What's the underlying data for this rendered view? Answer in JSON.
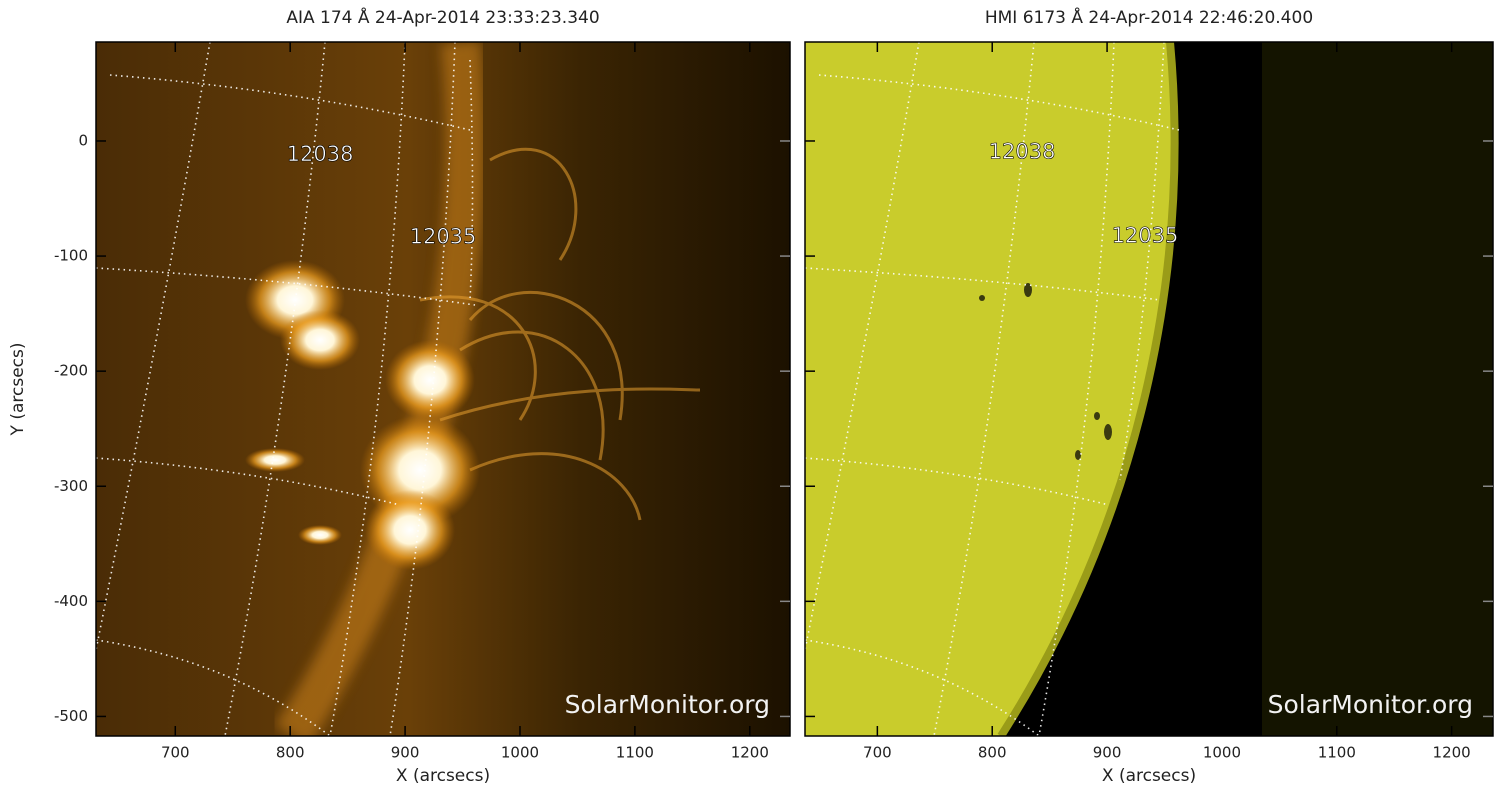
{
  "chart_data": [
    {
      "type": "image",
      "title": "AIA 174 Å 24-Apr-2014 23:33:23.340",
      "xlabel": "X (arcsecs)",
      "ylabel": "Y (arcsecs)",
      "xlim": [
        631,
        1235
      ],
      "ylim": [
        -517,
        86
      ],
      "xticks": [
        700,
        800,
        900,
        1000,
        1100,
        1200
      ],
      "yticks": [
        -500,
        -400,
        -300,
        -200,
        -100,
        0
      ],
      "ytick_labels": true,
      "annotations": [
        {
          "text": "12038",
          "x": 826,
          "y": -12
        },
        {
          "text": "12035",
          "x": 933,
          "y": -84
        }
      ],
      "watermark": "SolarMonitor.org"
    },
    {
      "type": "image",
      "title": "HMI 6173 Å 24-Apr-2014 22:46:20.400",
      "xlabel": "X (arcsecs)",
      "xlim": [
        637,
        1236
      ],
      "ylim": [
        -517,
        86
      ],
      "xticks": [
        700,
        800,
        900,
        1000,
        1100,
        1200
      ],
      "yticks": [
        -500,
        -400,
        -300,
        -200,
        -100,
        0
      ],
      "ytick_labels": false,
      "annotations": [
        {
          "text": "12038",
          "x": 826,
          "y": -10
        },
        {
          "text": "12035",
          "x": 933,
          "y": -83
        }
      ],
      "watermark": "SolarMonitor.org"
    }
  ]
}
